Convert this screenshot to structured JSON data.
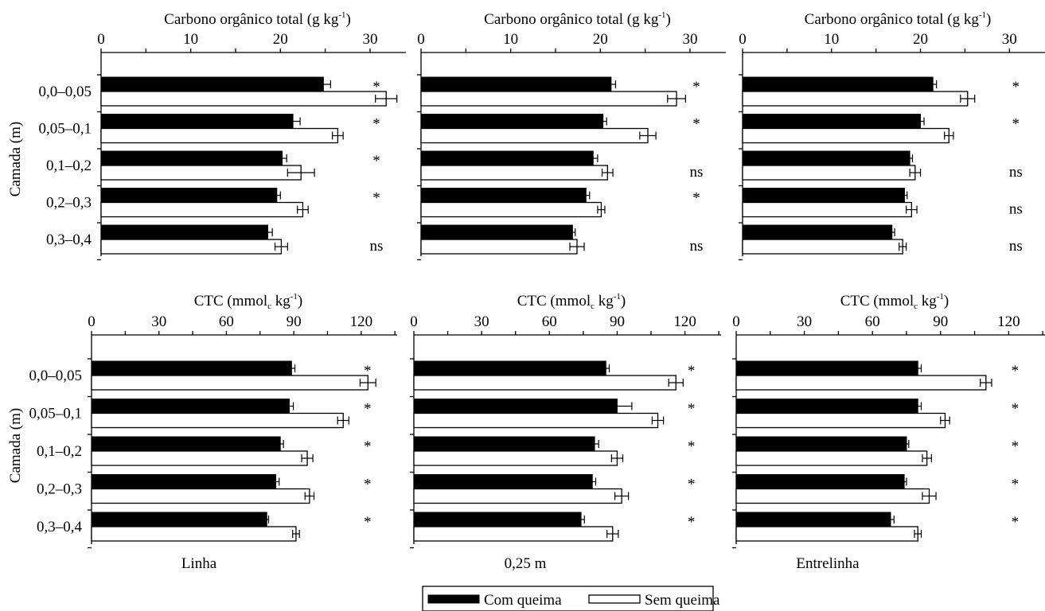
{
  "figure": {
    "ylabel": "Camada (m)",
    "categories": [
      "0,0–0,05",
      "0,05–0,1",
      "0,1–0,2",
      "0,2–0,3",
      "0,3–0,4"
    ],
    "columns": [
      "Linha",
      "0,25 m",
      "Entrelinha"
    ],
    "legend": [
      {
        "key": "com",
        "label": "Com queima",
        "color": "#000000"
      },
      {
        "key": "sem",
        "label": "Sem queima",
        "color": "#ffffff"
      }
    ]
  },
  "chart_data": [
    {
      "type": "bar",
      "orientation": "horizontal",
      "row": 0,
      "col": 0,
      "title_main": "Carbono orgânico total (g  kg",
      "title_sup": "-1",
      "title_end": ")",
      "xlabel_sub": "",
      "ticks": [
        0,
        10,
        20,
        30
      ],
      "xlim": [
        0,
        34
      ],
      "series": [
        {
          "name": "Com queima",
          "values": [
            24.8,
            21.4,
            20.2,
            19.6,
            18.6
          ],
          "errors": [
            0.8,
            0.8,
            0.5,
            0.4,
            0.5
          ]
        },
        {
          "name": "Sem queima",
          "values": [
            31.8,
            26.4,
            22.3,
            22.5,
            20.1
          ],
          "errors": [
            1.2,
            0.6,
            1.5,
            0.6,
            0.7
          ]
        }
      ],
      "significance": [
        "*",
        "*",
        "*",
        "*",
        "ns"
      ]
    },
    {
      "type": "bar",
      "orientation": "horizontal",
      "row": 0,
      "col": 1,
      "title_main": "Carbono orgânico total (g  kg",
      "title_sup": "-1",
      "title_end": ")",
      "ticks": [
        0,
        10,
        20,
        30
      ],
      "xlim": [
        0,
        34
      ],
      "series": [
        {
          "name": "Com queima",
          "values": [
            21.2,
            20.3,
            19.2,
            18.4,
            16.9
          ],
          "errors": [
            0.5,
            0.4,
            0.5,
            0.4,
            0.3
          ]
        },
        {
          "name": "Sem queima",
          "values": [
            28.5,
            25.3,
            20.8,
            20.1,
            17.4
          ],
          "errors": [
            1.0,
            0.9,
            0.6,
            0.4,
            0.8
          ]
        }
      ],
      "significance": [
        "*",
        "*",
        "ns",
        "*",
        "ns"
      ]
    },
    {
      "type": "bar",
      "orientation": "horizontal",
      "row": 0,
      "col": 2,
      "title_main": "Carbono orgânico total (g  kg",
      "title_sup": "-1",
      "title_end": ")",
      "ticks": [
        0,
        10,
        20,
        30
      ],
      "xlim": [
        0,
        34
      ],
      "series": [
        {
          "name": "Com queima",
          "values": [
            21.4,
            20.0,
            18.8,
            18.2,
            16.8
          ],
          "errors": [
            0.4,
            0.4,
            0.3,
            0.3,
            0.3
          ]
        },
        {
          "name": "Sem queima",
          "values": [
            25.3,
            23.2,
            19.4,
            19.0,
            18.0
          ],
          "errors": [
            0.8,
            0.5,
            0.6,
            0.6,
            0.4
          ]
        }
      ],
      "significance": [
        "*",
        "*",
        "ns",
        "ns",
        "ns"
      ]
    },
    {
      "type": "bar",
      "orientation": "horizontal",
      "row": 1,
      "col": 0,
      "title_main": "CTC (mmol",
      "title_sub": "c",
      "title_mid": " kg",
      "title_sup": "-1",
      "title_end": ")",
      "ticks": [
        0,
        30,
        60,
        90,
        120
      ],
      "xlim": [
        0,
        136
      ],
      "series": [
        {
          "name": "Com queima",
          "values": [
            89,
            88,
            84,
            82,
            78
          ],
          "errors": [
            1.5,
            1.8,
            1.4,
            1.5,
            0.8
          ]
        },
        {
          "name": "Sem queima",
          "values": [
            123,
            112,
            96,
            97,
            91
          ],
          "errors": [
            3.5,
            2.5,
            2.5,
            2.0,
            1.5
          ]
        }
      ],
      "significance": [
        "*",
        "*",
        "*",
        "*",
        "*"
      ]
    },
    {
      "type": "bar",
      "orientation": "horizontal",
      "row": 1,
      "col": 1,
      "title_main": "CTC (mmol",
      "title_sub": "c",
      "title_mid": " kg",
      "title_sup": "-1",
      "title_end": ")",
      "ticks": [
        0,
        30,
        60,
        90,
        120
      ],
      "xlim": [
        0,
        136
      ],
      "series": [
        {
          "name": "Com queima",
          "values": [
            85,
            90,
            80,
            79,
            74
          ],
          "errors": [
            1.5,
            6.5,
            1.8,
            1.5,
            1.5
          ]
        },
        {
          "name": "Sem queima",
          "values": [
            116,
            108,
            90,
            92,
            88
          ],
          "errors": [
            3.2,
            2.5,
            2.5,
            3.0,
            2.5
          ]
        }
      ],
      "significance": [
        "*",
        "*",
        "*",
        "*",
        "*"
      ]
    },
    {
      "type": "bar",
      "orientation": "horizontal",
      "row": 1,
      "col": 2,
      "title_main": "CTC (mmol",
      "title_sub": "c",
      "title_mid": " kg",
      "title_sup": "-1",
      "title_end": ")",
      "ticks": [
        0,
        30,
        60,
        90,
        120
      ],
      "xlim": [
        0,
        136
      ],
      "series": [
        {
          "name": "Com queima",
          "values": [
            80,
            80,
            75,
            74,
            68
          ],
          "errors": [
            1.5,
            1.5,
            1.0,
            1.0,
            1.5
          ]
        },
        {
          "name": "Sem queima",
          "values": [
            110,
            92,
            84,
            85,
            80
          ],
          "errors": [
            2.5,
            2.0,
            2.0,
            3.0,
            1.5
          ]
        }
      ],
      "significance": [
        "*",
        "*",
        "*",
        "*",
        "*"
      ]
    }
  ]
}
